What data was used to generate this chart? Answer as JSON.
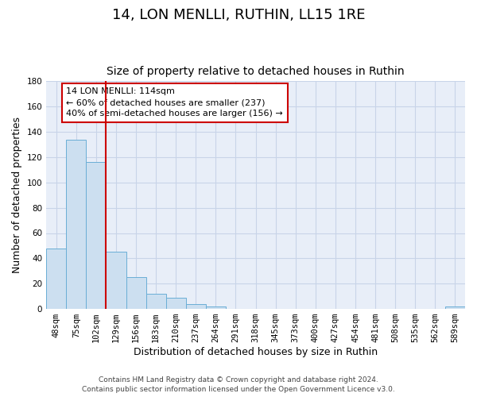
{
  "title": "14, LON MENLLI, RUTHIN, LL15 1RE",
  "subtitle": "Size of property relative to detached houses in Ruthin",
  "xlabel": "Distribution of detached houses by size in Ruthin",
  "ylabel": "Number of detached properties",
  "bar_labels": [
    "48sqm",
    "75sqm",
    "102sqm",
    "129sqm",
    "156sqm",
    "183sqm",
    "210sqm",
    "237sqm",
    "264sqm",
    "291sqm",
    "318sqm",
    "345sqm",
    "373sqm",
    "400sqm",
    "427sqm",
    "454sqm",
    "481sqm",
    "508sqm",
    "535sqm",
    "562sqm",
    "589sqm"
  ],
  "bar_values": [
    48,
    134,
    116,
    45,
    25,
    12,
    9,
    4,
    2,
    0,
    0,
    0,
    0,
    0,
    0,
    0,
    0,
    0,
    0,
    0,
    2
  ],
  "bar_color": "#ccdff0",
  "bar_edge_color": "#6aaed6",
  "ylim": [
    0,
    180
  ],
  "yticks": [
    0,
    20,
    40,
    60,
    80,
    100,
    120,
    140,
    160,
    180
  ],
  "vline_x_idx": 2,
  "vline_color": "#cc0000",
  "annotation_title": "14 LON MENLLI: 114sqm",
  "annotation_line1": "← 60% of detached houses are smaller (237)",
  "annotation_line2": "40% of semi-detached houses are larger (156) →",
  "annotation_box_color": "#cc0000",
  "footer_line1": "Contains HM Land Registry data © Crown copyright and database right 2024.",
  "footer_line2": "Contains public sector information licensed under the Open Government Licence v3.0.",
  "background_color": "#ffffff",
  "plot_bg_color": "#e8eef8",
  "grid_color": "#c8d4e8",
  "title_fontsize": 13,
  "subtitle_fontsize": 10,
  "axis_label_fontsize": 9,
  "tick_fontsize": 7.5,
  "annotation_fontsize": 8,
  "footer_fontsize": 6.5
}
